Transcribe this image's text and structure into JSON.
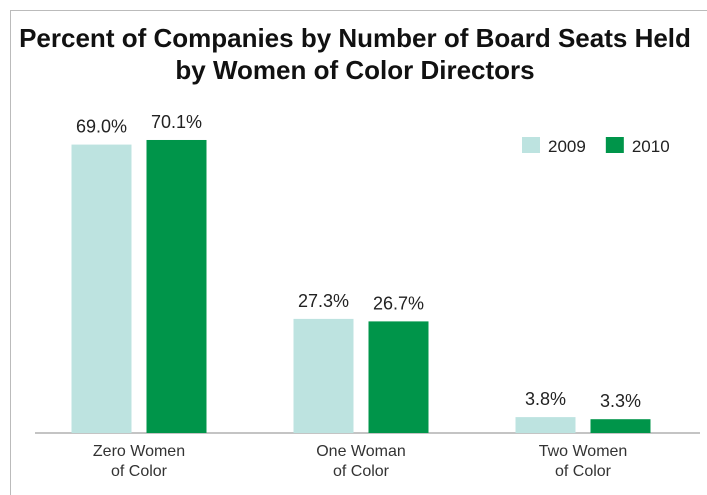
{
  "chart_data": {
    "type": "bar",
    "title": "Percent of Companies by Number of Board Seats Held by Women of Color Directors",
    "categories": [
      "Zero Women of Color",
      "One Woman of Color",
      "Two Women of Color"
    ],
    "series": [
      {
        "name": "2009",
        "color": "#bde3e0",
        "values": [
          69.0,
          27.3,
          3.8
        ],
        "value_labels": [
          "69.0%",
          "27.3%",
          "3.8%"
        ]
      },
      {
        "name": "2010",
        "color": "#00954a",
        "values": [
          70.1,
          26.7,
          3.3
        ],
        "value_labels": [
          "70.1%",
          "26.7%",
          "3.3%"
        ]
      }
    ],
    "legend": "upper right"
  }
}
